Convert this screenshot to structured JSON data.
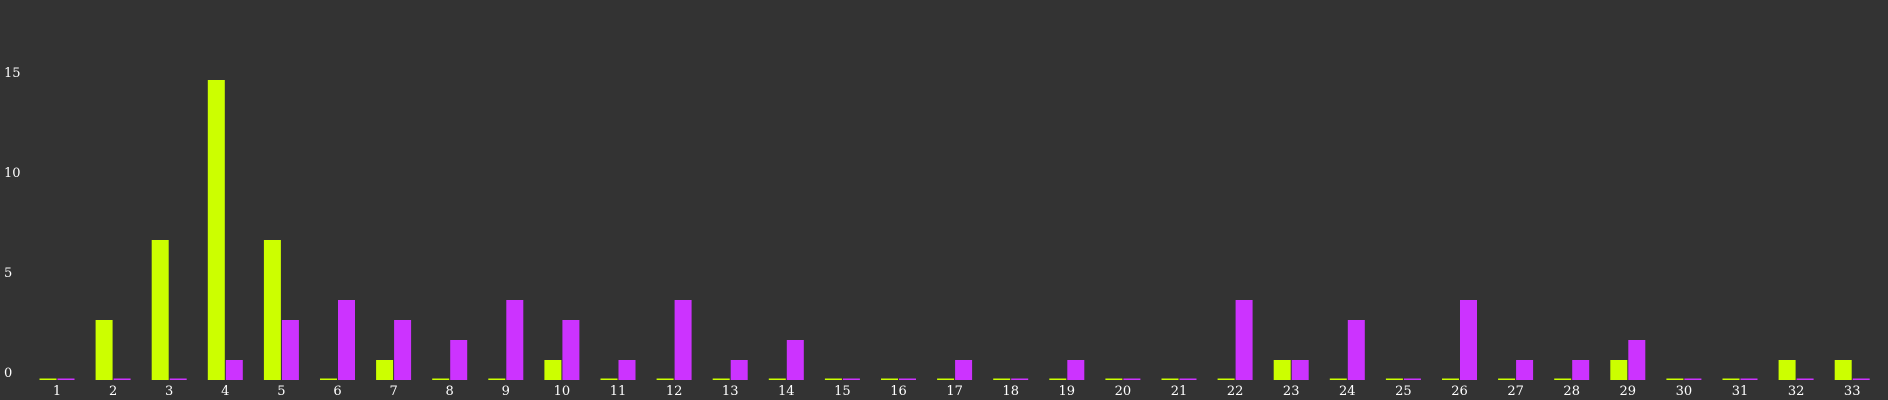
{
  "chart_data": {
    "type": "bar",
    "title": "",
    "xlabel": "",
    "ylabel": "",
    "ylim": [
      0,
      18
    ],
    "yticks": [
      0,
      5,
      10,
      15
    ],
    "grid": false,
    "legend": "none",
    "categories": [
      "1",
      "2",
      "3",
      "4",
      "5",
      "6",
      "7",
      "8",
      "9",
      "10",
      "11",
      "12",
      "13",
      "14",
      "15",
      "16",
      "17",
      "18",
      "19",
      "20",
      "21",
      "22",
      "23",
      "24",
      "25",
      "26",
      "27",
      "28",
      "29",
      "30",
      "31",
      "32",
      "33"
    ],
    "series": [
      {
        "color": "#ccff00",
        "values": [
          0,
          3,
          7,
          15,
          7,
          0,
          1,
          0,
          0,
          1,
          0,
          0,
          0,
          0,
          0,
          0,
          0,
          0,
          0,
          0,
          0,
          0,
          1,
          0,
          0,
          0,
          0,
          0,
          1,
          0,
          0,
          1,
          1
        ]
      },
      {
        "color": "#cc33ff",
        "values": [
          0,
          0,
          0,
          1,
          3,
          4,
          3,
          2,
          4,
          3,
          1,
          4,
          1,
          2,
          0,
          0,
          1,
          0,
          1,
          0,
          0,
          4,
          1,
          3,
          0,
          4,
          1,
          1,
          2,
          0,
          0,
          0,
          0
        ]
      }
    ]
  }
}
